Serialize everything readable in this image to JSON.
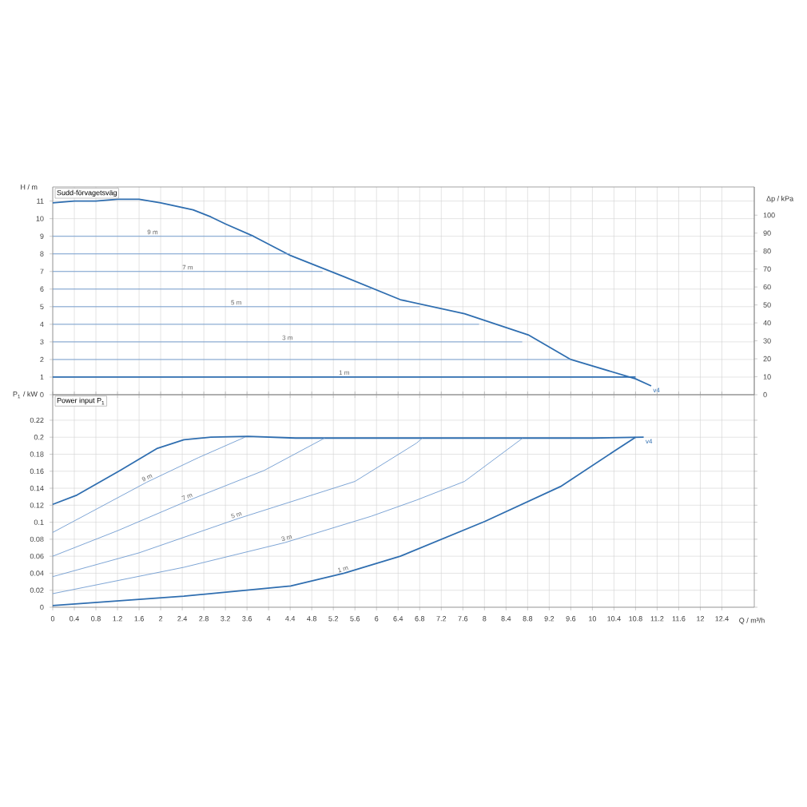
{
  "chart_data": [
    {
      "type": "line",
      "title": "Sudd-förvagetsväg",
      "ylabel": "H / m",
      "y2label": "Δp / kPa",
      "xlim": [
        0,
        13
      ],
      "ylim": [
        0,
        11.8
      ],
      "y2lim": [
        0,
        115.7
      ],
      "xticks": [
        0,
        0.4,
        0.8,
        1.2,
        1.6,
        2,
        2.4,
        2.8,
        3.2,
        3.6,
        4,
        4.4,
        4.8,
        5.2,
        5.6,
        6,
        6.4,
        6.8,
        7.2,
        7.6,
        8,
        8.4,
        8.8,
        9.2,
        9.6,
        10,
        10.4,
        10.8,
        11.2,
        11.6,
        12,
        12.4
      ],
      "yticks": [
        0,
        1,
        2,
        3,
        4,
        5,
        6,
        7,
        8,
        9,
        10,
        11
      ],
      "y2ticks": [
        0,
        10,
        20,
        30,
        40,
        50,
        60,
        70,
        80,
        90,
        100
      ],
      "tick_labels": "y",
      "grid": true,
      "marker": "none",
      "line_style": "solid",
      "series": [
        {
          "color": "#2f6eb0",
          "x": [
            0,
            0.4,
            0.8,
            1.2,
            1.6,
            2.0,
            2.6,
            2.93,
            3.2,
            3.72,
            4.41,
            5.4,
            6.44,
            7.63,
            8.81,
            9.6,
            10.8,
            11.09
          ],
          "values": [
            10.9,
            11.0,
            11.0,
            11.1,
            11.1,
            10.9,
            10.5,
            10.1,
            9.7,
            9.0,
            7.9,
            6.7,
            5.4,
            4.6,
            3.4,
            2.0,
            0.9,
            0.5
          ]
        },
        {
          "name": "9 m",
          "color": "#6f9bd0",
          "x": [
            0,
            3.7
          ],
          "values": [
            9,
            9
          ]
        },
        {
          "color": "#6f9bd0",
          "x": [
            0,
            4.4
          ],
          "values": [
            8,
            8
          ]
        },
        {
          "name": "7 m",
          "color": "#6f9bd0",
          "x": [
            0,
            5.0
          ],
          "values": [
            7,
            7
          ]
        },
        {
          "color": "#6f9bd0",
          "x": [
            0,
            5.9
          ],
          "values": [
            6,
            6
          ]
        },
        {
          "name": "5 m",
          "color": "#6f9bd0",
          "x": [
            0,
            6.8
          ],
          "values": [
            5,
            5
          ]
        },
        {
          "color": "#6f9bd0",
          "x": [
            0,
            7.9
          ],
          "values": [
            4,
            4
          ]
        },
        {
          "name": "3 m",
          "color": "#6f9bd0",
          "x": [
            0,
            8.7
          ],
          "values": [
            3,
            3
          ]
        },
        {
          "color": "#6f9bd0",
          "x": [
            0,
            9.6
          ],
          "values": [
            2,
            2
          ]
        },
        {
          "name": "1 m",
          "color": "#2f6eb0",
          "x": [
            0,
            10.8
          ],
          "values": [
            1,
            1
          ]
        }
      ],
      "annotations": [
        {
          "text": "v4",
          "x": 11.09,
          "y": 0.5
        }
      ]
    },
    {
      "type": "line",
      "title": "Power input P$_{1}$",
      "ylabel": "P$_{1}$ / kW",
      "xlabel": "Q / m³/h",
      "xlim": [
        0,
        13
      ],
      "ylim": [
        0,
        0.25
      ],
      "xticks": [
        0,
        0.4,
        0.8,
        1.2,
        1.6,
        2,
        2.4,
        2.8,
        3.2,
        3.6,
        4,
        4.4,
        4.8,
        5.2,
        5.6,
        6,
        6.4,
        6.8,
        7.2,
        7.6,
        8,
        8.4,
        8.8,
        9.2,
        9.6,
        10,
        10.4,
        10.8,
        11.2,
        11.6,
        12,
        12.4
      ],
      "yticks": [
        0,
        0.02,
        0.04,
        0.06,
        0.08,
        0.1,
        0.12,
        0.14,
        0.16,
        0.18,
        0.2,
        0.22
      ],
      "grid": true,
      "marker": "none",
      "line_style": "solid",
      "series": [
        {
          "color": "#2f6eb0",
          "x": [
            0,
            0.45,
            1.25,
            1.94,
            2.43,
            2.93,
            3.62,
            4.5,
            6,
            8,
            10,
            10.95
          ],
          "values": [
            0.121,
            0.132,
            0.161,
            0.187,
            0.197,
            0.2,
            0.201,
            0.199,
            0.199,
            0.199,
            0.199,
            0.2
          ]
        },
        {
          "name": "9 m",
          "color": "#6f9bd0",
          "x": [
            0,
            0.65,
            1.74,
            2.7,
            3.56
          ],
          "values": [
            0.088,
            0.11,
            0.147,
            0.176,
            0.2
          ]
        },
        {
          "name": "7 m",
          "color": "#6f9bd0",
          "x": [
            0,
            1.2,
            2.53,
            3.92,
            5.04
          ],
          "values": [
            0.06,
            0.09,
            0.126,
            0.161,
            0.199
          ]
        },
        {
          "name": "5 m",
          "color": "#6f9bd0",
          "x": [
            0,
            1.6,
            3.42,
            5.6,
            6.74,
            6.85
          ],
          "values": [
            0.036,
            0.064,
            0.104,
            0.148,
            0.193,
            0.199
          ]
        },
        {
          "name": "3 m",
          "color": "#6f9bd0",
          "x": [
            0,
            2.43,
            4.3,
            5.9,
            6.74,
            7.63,
            8.71
          ],
          "values": [
            0.016,
            0.047,
            0.076,
            0.107,
            0.126,
            0.148,
            0.199
          ]
        },
        {
          "name": "1 m",
          "color": "#2f6eb0",
          "x": [
            0,
            2.43,
            4.41,
            5.4,
            6.44,
            8.01,
            9.41,
            10.39,
            10.8
          ],
          "values": [
            0.002,
            0.013,
            0.025,
            0.04,
            0.06,
            0.101,
            0.142,
            0.183,
            0.2
          ]
        }
      ],
      "annotations": [
        {
          "text": "v4",
          "x": 10.95,
          "y": 0.2
        }
      ]
    }
  ]
}
